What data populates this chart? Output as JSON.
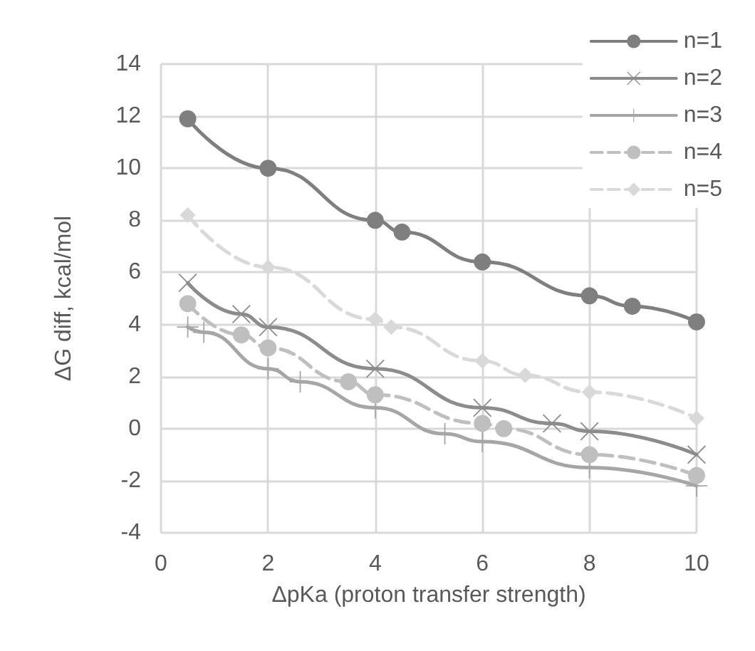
{
  "chart_data": {
    "type": "line",
    "xlabel": "ΔpKa (proton transfer strength)",
    "ylabel": "ΔG diff, kcal/mol",
    "xlim": [
      0,
      10
    ],
    "xticks": [
      0,
      2,
      4,
      6,
      8,
      10
    ],
    "ylim": [
      -4,
      14
    ],
    "yticks": [
      -4,
      -2,
      0,
      2,
      4,
      6,
      8,
      10,
      12,
      14
    ],
    "grid": true,
    "legend": "top right",
    "series": [
      {
        "name": "n=1",
        "color": "#7f7f7f",
        "marker": "circle",
        "line_style": "solid",
        "x": [
          0.5,
          2,
          4,
          4.5,
          6,
          8,
          8.8,
          10
        ],
        "values": [
          11.9,
          10,
          8,
          7.55,
          6.4,
          5.1,
          4.7,
          4.1
        ]
      },
      {
        "name": "n=2",
        "color": "#8c8c8c",
        "marker": "cross",
        "line_style": "solid",
        "x": [
          0.5,
          1.5,
          2,
          4,
          6,
          7.3,
          8,
          10
        ],
        "values": [
          5.6,
          4.4,
          3.9,
          2.3,
          0.8,
          0.2,
          -0.1,
          -1.0
        ]
      },
      {
        "name": "n=3",
        "color": "#a6a6a6",
        "marker": "plus",
        "line_style": "solid",
        "x": [
          0.5,
          0.8,
          2,
          2.6,
          4,
          5.3,
          6,
          8,
          10
        ],
        "values": [
          3.9,
          3.7,
          2.3,
          1.8,
          0.8,
          -0.2,
          -0.5,
          -1.5,
          -2.2
        ]
      },
      {
        "name": "n=4",
        "color": "#bfbfbf",
        "marker": "circle",
        "line_style": "dashed",
        "x": [
          0.5,
          1.5,
          2,
          3.5,
          4,
          6,
          6.4,
          8,
          10
        ],
        "values": [
          4.8,
          3.6,
          3.1,
          1.8,
          1.3,
          0.2,
          0.0,
          -1.0,
          -1.8
        ]
      },
      {
        "name": "n=5",
        "color": "#d9d9d9",
        "marker": "diamond",
        "line_style": "dashed",
        "x": [
          0.5,
          2,
          4,
          4.3,
          6,
          6.8,
          8,
          10
        ],
        "values": [
          8.2,
          6.2,
          4.2,
          3.9,
          2.6,
          2.05,
          1.4,
          0.4
        ]
      }
    ]
  }
}
